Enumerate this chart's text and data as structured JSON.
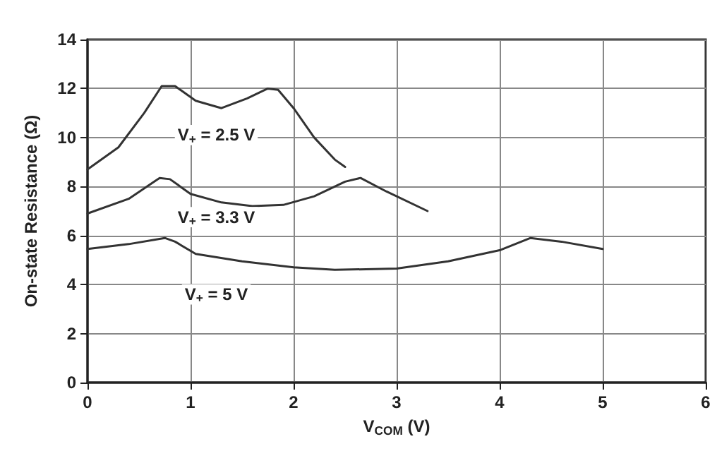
{
  "chart_data": {
    "type": "line",
    "xlabel": "V$_{COM}$ (V)",
    "ylabel": "On-state Resistance (Ω)",
    "xlim": [
      0,
      6
    ],
    "xticks": [
      0,
      1,
      2,
      3,
      4,
      5,
      6
    ],
    "ylim": [
      0,
      14
    ],
    "yticks": [
      0,
      2,
      4,
      6,
      8,
      10,
      12,
      14
    ],
    "grid": true,
    "legend": false,
    "marker": "none",
    "line_style": "solid",
    "series": [
      {
        "name": "V$_{+}$ = 2.5 V",
        "color": "#333333",
        "x": [
          0,
          0.3,
          0.55,
          0.72,
          0.85,
          1.05,
          1.3,
          1.55,
          1.75,
          1.85,
          2.0,
          2.2,
          2.4,
          2.5
        ],
        "values": [
          8.7,
          9.6,
          11.0,
          12.1,
          12.1,
          11.5,
          11.2,
          11.6,
          12.0,
          11.95,
          11.2,
          10.0,
          9.1,
          8.8
        ]
      },
      {
        "name": "V$_{+}$ = 3.3 V",
        "color": "#333333",
        "x": [
          0,
          0.4,
          0.7,
          0.8,
          1.0,
          1.3,
          1.6,
          1.9,
          2.2,
          2.5,
          2.65,
          2.9,
          3.3
        ],
        "values": [
          6.9,
          7.5,
          8.35,
          8.3,
          7.7,
          7.35,
          7.2,
          7.25,
          7.6,
          8.2,
          8.35,
          7.8,
          7.0
        ]
      },
      {
        "name": "V$_{+}$ = 5 V",
        "color": "#333333",
        "x": [
          0,
          0.4,
          0.75,
          0.85,
          1.05,
          1.5,
          2.0,
          2.4,
          3.0,
          3.5,
          4.0,
          4.3,
          4.6,
          5.0
        ],
        "values": [
          5.45,
          5.65,
          5.9,
          5.75,
          5.25,
          4.95,
          4.7,
          4.6,
          4.65,
          4.95,
          5.4,
          5.9,
          5.75,
          5.45
        ]
      }
    ]
  }
}
